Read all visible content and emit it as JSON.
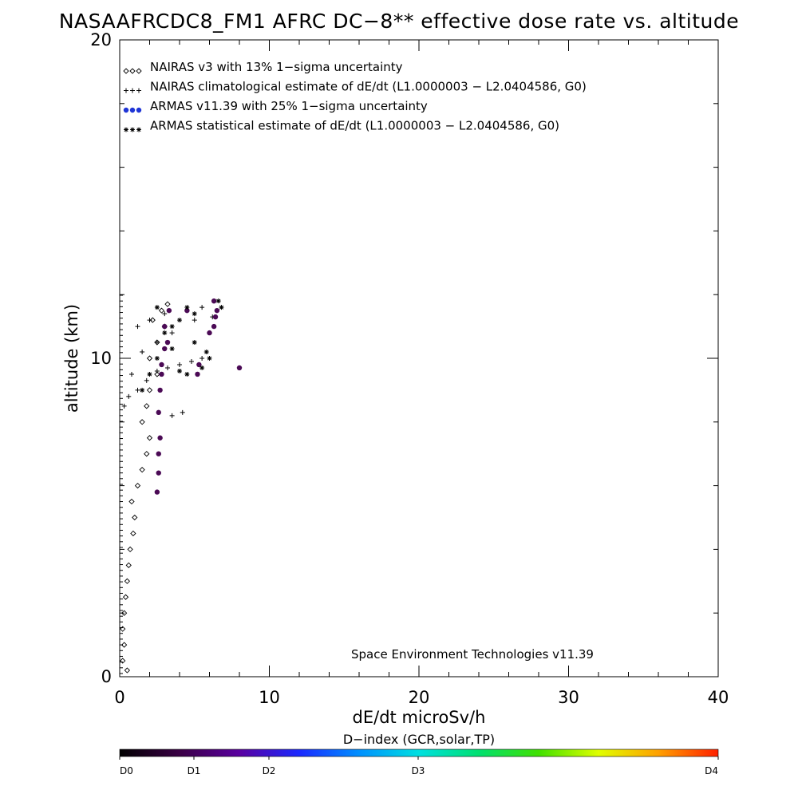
{
  "chart_data": {
    "type": "scatter",
    "title": "NASAAFRCDC8_FM1 AFRC DC−8** effective dose rate vs. altitude",
    "xlabel": "dE/dt microSv/h",
    "ylabel": "altitude (km)",
    "xlim": [
      0,
      40
    ],
    "ylim": [
      0,
      20
    ],
    "x_ticks": [
      "0",
      "10",
      "20",
      "30",
      "40"
    ],
    "y_ticks": [
      "0",
      "10",
      "20"
    ],
    "grid": false,
    "legend_position": "top-left",
    "legend": [
      {
        "marker": "◇◇◇",
        "label": "NAIRAS v3 with 13% 1−sigma uncertainty"
      },
      {
        "marker": "+++",
        "label": "NAIRAS climatological estimate of dE/dt (L1.0000003 − L2.0404586, G0)"
      },
      {
        "marker": "●●●",
        "label": "ARMAS v11.39 with 25% 1−sigma uncertainty"
      },
      {
        "marker": "***",
        "label": "ARMAS statistical estimate of dE/dt (L1.0000003 − L2.0404586, G0)"
      }
    ],
    "annotation": "Space Environment Technologies v11.39",
    "colorbar": {
      "label": "D−index (GCR,solar,TP)",
      "ticks": [
        {
          "label": "D0",
          "value": 0
        },
        {
          "label": "D1",
          "value": 1
        },
        {
          "label": "D2",
          "value": 2
        },
        {
          "label": "D3",
          "value": 3
        },
        {
          "label": "D4",
          "value": 4
        }
      ]
    },
    "series": [
      {
        "name": "NAIRAS v3 with 13% 1−sigma uncertainty",
        "marker": "diamond",
        "points": [
          [
            0.2,
            0.5
          ],
          [
            0.3,
            1.0
          ],
          [
            0.2,
            1.5
          ],
          [
            0.3,
            2.0
          ],
          [
            0.4,
            2.5
          ],
          [
            0.5,
            3.0
          ],
          [
            0.6,
            3.5
          ],
          [
            0.7,
            4.0
          ],
          [
            0.9,
            4.5
          ],
          [
            1.0,
            5.0
          ],
          [
            0.8,
            5.5
          ],
          [
            1.2,
            6.0
          ],
          [
            1.5,
            6.5
          ],
          [
            1.8,
            7.0
          ],
          [
            2.0,
            7.5
          ],
          [
            1.5,
            8.0
          ],
          [
            1.8,
            8.5
          ],
          [
            2.0,
            9.0
          ],
          [
            2.5,
            9.5
          ],
          [
            2.0,
            10.0
          ],
          [
            2.5,
            10.5
          ],
          [
            3.0,
            11.0
          ],
          [
            2.8,
            11.5
          ],
          [
            3.2,
            11.7
          ],
          [
            2.2,
            11.2
          ],
          [
            0.5,
            0.2
          ]
        ]
      },
      {
        "name": "NAIRAS climatological estimate of dE/dt (L1.0000003 − L2.0404586, G0)",
        "marker": "plus",
        "points": [
          [
            0.3,
            8.5
          ],
          [
            0.6,
            8.8
          ],
          [
            1.2,
            9.0
          ],
          [
            1.8,
            9.3
          ],
          [
            2.5,
            9.6
          ],
          [
            3.2,
            9.7
          ],
          [
            4.0,
            9.8
          ],
          [
            4.8,
            9.9
          ],
          [
            5.5,
            10.0
          ],
          [
            1.5,
            10.2
          ],
          [
            2.5,
            10.5
          ],
          [
            3.5,
            10.8
          ],
          [
            1.2,
            11.0
          ],
          [
            2.0,
            11.2
          ],
          [
            3.0,
            11.4
          ],
          [
            4.5,
            11.5
          ],
          [
            5.5,
            11.6
          ],
          [
            6.2,
            11.3
          ],
          [
            4.2,
            8.3
          ],
          [
            3.5,
            8.2
          ],
          [
            0.8,
            9.5
          ],
          [
            5.0,
            11.2
          ]
        ]
      },
      {
        "name": "ARMAS v11.39 with 25% 1−sigma uncertainty",
        "marker": "dot",
        "points": [
          [
            2.5,
            5.8
          ],
          [
            2.6,
            6.4
          ],
          [
            2.6,
            7.0
          ],
          [
            2.7,
            7.5
          ],
          [
            2.6,
            8.3
          ],
          [
            2.7,
            9.0
          ],
          [
            2.8,
            9.5
          ],
          [
            2.8,
            9.8
          ],
          [
            3.0,
            10.3
          ],
          [
            3.2,
            10.5
          ],
          [
            3.0,
            11.0
          ],
          [
            3.3,
            11.5
          ],
          [
            4.5,
            11.5
          ],
          [
            5.2,
            9.5
          ],
          [
            5.3,
            9.8
          ],
          [
            6.0,
            10.8
          ],
          [
            6.3,
            11.0
          ],
          [
            6.4,
            11.3
          ],
          [
            6.5,
            11.5
          ],
          [
            6.3,
            11.8
          ],
          [
            8.0,
            9.7
          ]
        ]
      },
      {
        "name": "ARMAS statistical estimate of dE/dt (L1.0000003 − L2.0404586, G0)",
        "marker": "asterisk",
        "points": [
          [
            1.5,
            9.0
          ],
          [
            2.0,
            9.5
          ],
          [
            2.5,
            10.0
          ],
          [
            3.0,
            10.8
          ],
          [
            3.5,
            11.0
          ],
          [
            4.0,
            11.2
          ],
          [
            4.5,
            11.6
          ],
          [
            5.0,
            11.4
          ],
          [
            5.5,
            9.7
          ],
          [
            5.8,
            10.2
          ],
          [
            6.0,
            10.0
          ],
          [
            6.6,
            11.8
          ],
          [
            6.8,
            11.6
          ],
          [
            2.5,
            11.6
          ],
          [
            3.5,
            10.3
          ],
          [
            4.0,
            9.6
          ],
          [
            4.5,
            9.5
          ],
          [
            5.0,
            10.5
          ]
        ]
      }
    ]
  }
}
